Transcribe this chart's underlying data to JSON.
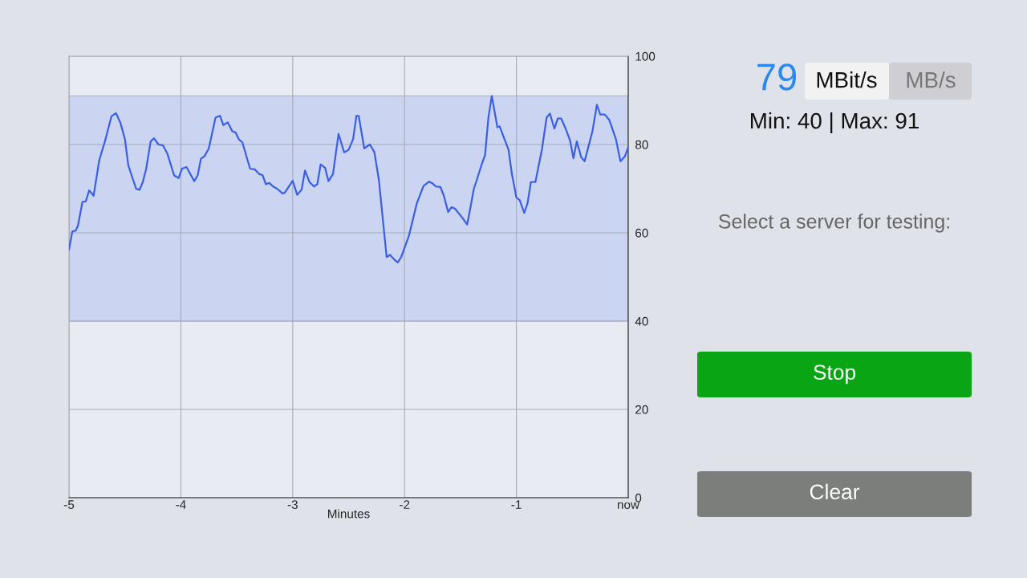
{
  "chart_data": [
    {
      "type": "line",
      "xlabel": "Minutes",
      "xlim": [
        -5,
        0
      ],
      "xticks": [
        -5,
        -4,
        -3,
        -2,
        -1,
        {
          "value": 0,
          "label": "now"
        }
      ],
      "ylim": [
        0,
        100
      ],
      "yticks": [
        0,
        20,
        40,
        60,
        80,
        100
      ],
      "grid": true,
      "bands": [
        {
          "axis": "y",
          "from": 40,
          "to": 91,
          "color": "#c5d0f2"
        }
      ],
      "series": [
        {
          "color": "#3a5fe0",
          "x": [
            -5.0,
            -4.97,
            -4.94,
            -4.92,
            -4.88,
            -4.85,
            -4.82,
            -4.78,
            -4.73,
            -4.68,
            -4.62,
            -4.58,
            -4.54,
            -4.5,
            -4.47,
            -4.44,
            -4.4,
            -4.37,
            -4.34,
            -4.31,
            -4.27,
            -4.24,
            -4.2,
            -4.16,
            -4.12,
            -4.06,
            -4.02,
            -3.99,
            -3.95,
            -3.88,
            -3.85,
            -3.82,
            -3.79,
            -3.75,
            -3.69,
            -3.65,
            -3.62,
            -3.58,
            -3.54,
            -3.51,
            -3.48,
            -3.45,
            -3.41,
            -3.38,
            -3.34,
            -3.3,
            -3.27,
            -3.24,
            -3.21,
            -3.17,
            -3.14,
            -3.09,
            -3.07,
            -3.0,
            -2.96,
            -2.92,
            -2.89,
            -2.85,
            -2.81,
            -2.78,
            -2.75,
            -2.71,
            -2.68,
            -2.64,
            -2.59,
            -2.54,
            -2.5,
            -2.46,
            -2.43,
            -2.41,
            -2.36,
            -2.31,
            -2.27,
            -2.23,
            -2.16,
            -2.13,
            -2.09,
            -2.06,
            -2.03,
            -1.96,
            -1.89,
            -1.83,
            -1.78,
            -1.75,
            -1.72,
            -1.68,
            -1.65,
            -1.61,
            -1.58,
            -1.55,
            -1.48,
            -1.44,
            -1.42,
            -1.38,
            -1.36,
            -1.31,
            -1.28,
            -1.25,
            -1.22,
            -1.17,
            -1.15,
            -1.07,
            -1.04,
            -1.0,
            -0.97,
            -0.93,
            -0.9,
            -0.87,
            -0.83,
            -0.77,
            -0.73,
            -0.7,
            -0.66,
            -0.63,
            -0.6,
            -0.56,
            -0.52,
            -0.49,
            -0.46,
            -0.42,
            -0.39,
            -0.32,
            -0.28,
            -0.25,
            -0.21,
            -0.17,
            -0.11,
            -0.07,
            -0.03,
            0.0
          ],
          "values": [
            56.2,
            60.3,
            60.5,
            61.6,
            67.0,
            67.1,
            69.6,
            68.4,
            76.4,
            80.6,
            86.4,
            87.1,
            84.9,
            81.2,
            75.3,
            73.0,
            70.0,
            69.7,
            71.5,
            74.5,
            80.7,
            81.4,
            80.0,
            79.8,
            77.9,
            73.0,
            72.4,
            74.5,
            74.9,
            71.7,
            73.0,
            76.8,
            77.3,
            79.1,
            86.1,
            86.5,
            84.4,
            85.0,
            83.0,
            82.7,
            81.1,
            80.5,
            77.0,
            74.5,
            74.4,
            73.3,
            73.1,
            71.0,
            71.3,
            70.4,
            70.0,
            68.9,
            69.1,
            71.8,
            68.6,
            69.8,
            74.1,
            71.5,
            70.5,
            71.0,
            75.5,
            74.7,
            71.7,
            73.3,
            82.4,
            78.2,
            78.8,
            81.2,
            86.5,
            86.5,
            79.1,
            80.0,
            78.3,
            72.1,
            54.5,
            55.0,
            53.9,
            53.3,
            54.5,
            59.4,
            66.7,
            70.6,
            71.6,
            71.2,
            70.5,
            70.4,
            68.5,
            64.7,
            65.8,
            65.5,
            63.3,
            61.9,
            64.5,
            70.0,
            71.5,
            75.5,
            77.6,
            86.1,
            91,
            83.9,
            84.1,
            78.8,
            73.3,
            68.0,
            67.4,
            64.5,
            66.7,
            71.5,
            71.5,
            79.1,
            86.1,
            87.0,
            83.6,
            85.9,
            85.9,
            83.6,
            80.9,
            76.9,
            80.7,
            77.1,
            76.2,
            83.0,
            89.0,
            86.8,
            86.8,
            85.6,
            81.2,
            76.2,
            77.3,
            79.4
          ]
        }
      ]
    },
    {
      "type": "other",
      "annotations": [
        "79",
        "MBit/s",
        "MB/s",
        "Min: 40 | Max: 91",
        "Select a server for testing:",
        "Stop",
        "Clear"
      ]
    }
  ]
}
